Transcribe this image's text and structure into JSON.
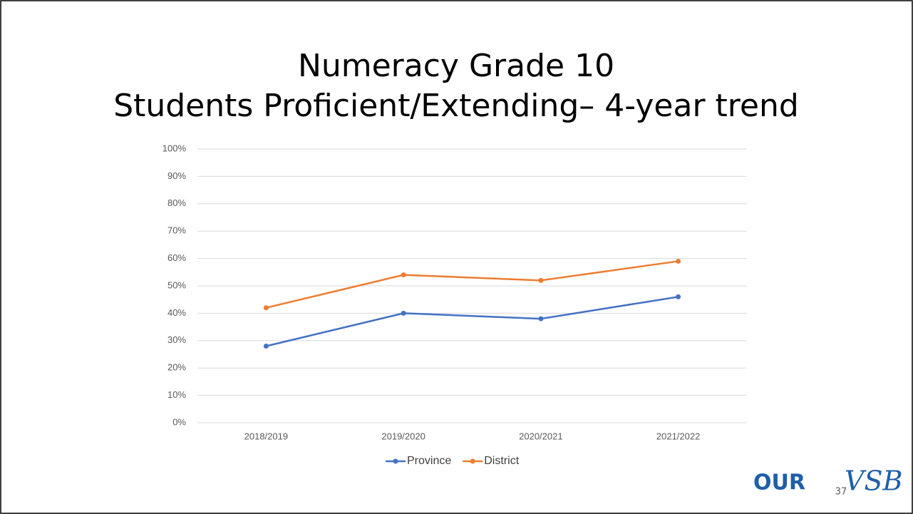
{
  "chart_data": {
    "type": "line",
    "title": "Numeracy Grade 10",
    "subtitle": "Students Proficient/Extending– 4-year trend",
    "categories": [
      "2018/2019",
      "2019/2020",
      "2020/2021",
      "2021/2022"
    ],
    "series": [
      {
        "name": "Province",
        "color": "#4472c4",
        "values": [
          28,
          40,
          38,
          46
        ]
      },
      {
        "name": "District",
        "color": "#ed7d31",
        "values": [
          42,
          54,
          52,
          59
        ]
      }
    ],
    "ylim": [
      0,
      100
    ],
    "yticks": [
      {
        "value": 0,
        "label": "0%"
      },
      {
        "value": 10,
        "label": "10%"
      },
      {
        "value": 20,
        "label": "20%"
      },
      {
        "value": 30,
        "label": "30%"
      },
      {
        "value": 40,
        "label": "40%"
      },
      {
        "value": 50,
        "label": "50%"
      },
      {
        "value": 60,
        "label": "60%"
      },
      {
        "value": 70,
        "label": "70%"
      },
      {
        "value": 80,
        "label": "80%"
      },
      {
        "value": 90,
        "label": "90%"
      },
      {
        "value": 100,
        "label": "100%"
      }
    ],
    "grid": true,
    "legend": "bottom"
  },
  "slide_number": "37",
  "logo": [
    "OUR",
    "VSB"
  ]
}
